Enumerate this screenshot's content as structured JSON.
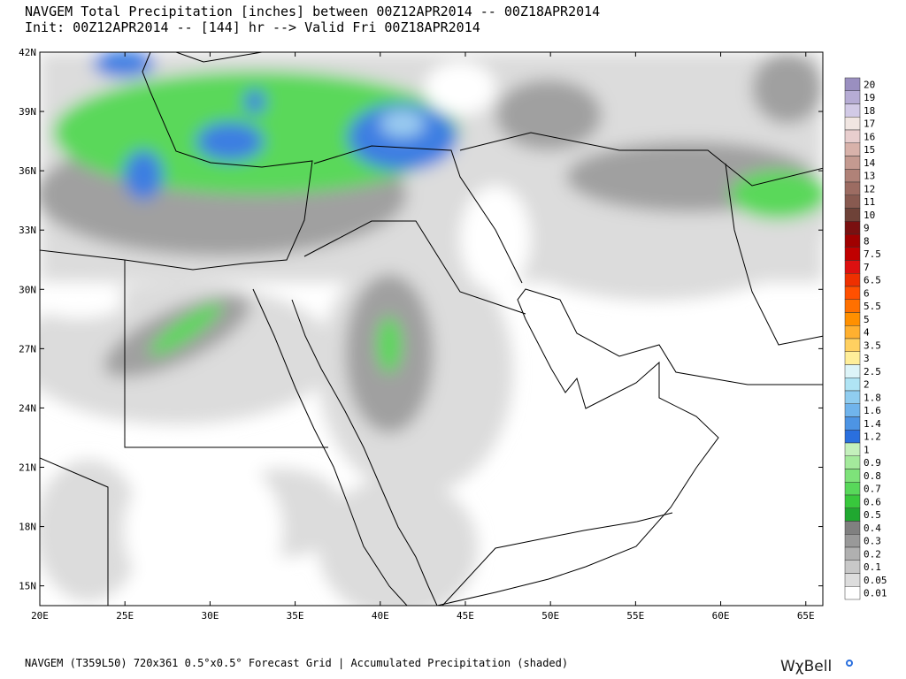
{
  "map": {
    "title": "NAVGEM Total Precipitation [inches] between 00Z12APR2014 -- 00Z18APR2014",
    "subtitle": "Init: 00Z12APR2014 -- [144] hr --> Valid Fri 00Z18APR2014",
    "lon_range": [
      20,
      66
    ],
    "lat_range": [
      14,
      42
    ],
    "lon_ticks": [
      {
        "value": 20,
        "label": "20E"
      },
      {
        "value": 25,
        "label": "25E"
      },
      {
        "value": 30,
        "label": "30E"
      },
      {
        "value": 35,
        "label": "35E"
      },
      {
        "value": 40,
        "label": "40E"
      },
      {
        "value": 45,
        "label": "45E"
      },
      {
        "value": 50,
        "label": "50E"
      },
      {
        "value": 55,
        "label": "55E"
      },
      {
        "value": 60,
        "label": "60E"
      },
      {
        "value": 65,
        "label": "65E"
      }
    ],
    "lat_ticks": [
      {
        "value": 42,
        "label": "42N"
      },
      {
        "value": 39,
        "label": "39N"
      },
      {
        "value": 36,
        "label": "36N"
      },
      {
        "value": 33,
        "label": "33N"
      },
      {
        "value": 30,
        "label": "30N"
      },
      {
        "value": 27,
        "label": "27N"
      },
      {
        "value": 24,
        "label": "24N"
      },
      {
        "value": 21,
        "label": "21N"
      },
      {
        "value": 18,
        "label": "18N"
      },
      {
        "value": 15,
        "label": "15N"
      }
    ],
    "colorbar": [
      {
        "label": "20",
        "color": "#9a8fc0"
      },
      {
        "label": "19",
        "color": "#b6acd4"
      },
      {
        "label": "18",
        "color": "#d2cae6"
      },
      {
        "label": "17",
        "color": "#f1e6e2"
      },
      {
        "label": "16",
        "color": "#e8cece"
      },
      {
        "label": "15",
        "color": "#d8b2aa"
      },
      {
        "label": "14",
        "color": "#c49a90"
      },
      {
        "label": "13",
        "color": "#b08278"
      },
      {
        "label": "12",
        "color": "#9c6c62"
      },
      {
        "label": "11",
        "color": "#885a50"
      },
      {
        "label": "10",
        "color": "#6e4238"
      },
      {
        "label": "9",
        "color": "#7a1010"
      },
      {
        "label": "8",
        "color": "#a00000"
      },
      {
        "label": "7.5",
        "color": "#c00000"
      },
      {
        "label": "7",
        "color": "#dd1010"
      },
      {
        "label": "6.5",
        "color": "#ee3000"
      },
      {
        "label": "6",
        "color": "#ff5000"
      },
      {
        "label": "5.5",
        "color": "#ff7000"
      },
      {
        "label": "5",
        "color": "#ff9000"
      },
      {
        "label": "4",
        "color": "#ffb030"
      },
      {
        "label": "3.5",
        "color": "#ffd060"
      },
      {
        "label": "3",
        "color": "#ffee99"
      },
      {
        "label": "2.5",
        "color": "#ddf4f8"
      },
      {
        "label": "2",
        "color": "#b0e4f4"
      },
      {
        "label": "1.8",
        "color": "#90cdf0"
      },
      {
        "label": "1.6",
        "color": "#70b4ec"
      },
      {
        "label": "1.4",
        "color": "#4d94e4"
      },
      {
        "label": "1.2",
        "color": "#2a6fde"
      },
      {
        "label": "1",
        "color": "#c4f0bc"
      },
      {
        "label": "0.9",
        "color": "#a4ea9c"
      },
      {
        "label": "0.8",
        "color": "#7ee27a"
      },
      {
        "label": "0.7",
        "color": "#58d85a"
      },
      {
        "label": "0.6",
        "color": "#38c83c"
      },
      {
        "label": "0.5",
        "color": "#20a830"
      },
      {
        "label": "0.4",
        "color": "#808080"
      },
      {
        "label": "0.3",
        "color": "#999999"
      },
      {
        "label": "0.2",
        "color": "#b0b0b0"
      },
      {
        "label": "0.1",
        "color": "#c8c8c8"
      },
      {
        "label": "0.05",
        "color": "#dddddd"
      },
      {
        "label": "0.01",
        "color": "#ffffff"
      }
    ],
    "footer": "NAVGEM (T359L50) 720x361 0.5°x0.5° Forecast Grid |  Accumulated Precipitation (shaded)",
    "brand": "WχBell"
  }
}
